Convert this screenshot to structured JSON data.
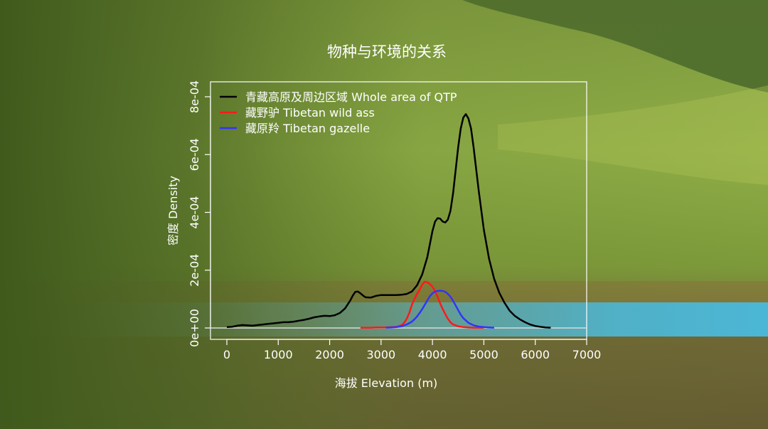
{
  "chart_data": {
    "type": "line",
    "title": "物种与环境的关系",
    "xlabel": "海拔  Elevation (m)",
    "ylabel": "密度  Density",
    "xlim": [
      0,
      7000
    ],
    "ylim": [
      0,
      0.0008
    ],
    "x_ticks": [
      "0",
      "1000",
      "2000",
      "3000",
      "4000",
      "5000",
      "6000",
      "7000"
    ],
    "y_ticks": [
      "0e+00",
      "2e-04",
      "4e-04",
      "6e-04",
      "8e-04"
    ],
    "legend_position": "top-left",
    "grid": false,
    "series": [
      {
        "name": "青藏高原及周边区域 Whole area of QTP",
        "color": "#000000",
        "x": [
          0,
          100,
          200,
          300,
          400,
          500,
          600,
          700,
          800,
          900,
          1000,
          1100,
          1200,
          1300,
          1400,
          1500,
          1600,
          1700,
          1800,
          1900,
          2000,
          2100,
          2200,
          2300,
          2400,
          2450,
          2500,
          2550,
          2600,
          2650,
          2700,
          2800,
          2900,
          3000,
          3100,
          3200,
          3300,
          3400,
          3500,
          3600,
          3700,
          3800,
          3900,
          3950,
          4000,
          4050,
          4100,
          4150,
          4200,
          4250,
          4300,
          4350,
          4400,
          4450,
          4500,
          4550,
          4600,
          4650,
          4700,
          4750,
          4800,
          4850,
          4900,
          5000,
          5100,
          5200,
          5300,
          5400,
          5500,
          5600,
          5700,
          5800,
          5900,
          6000,
          6100,
          6200,
          6300
        ],
        "y": [
          3e-06,
          4e-06,
          8e-06,
          1e-05,
          9e-06,
          8e-06,
          1e-05,
          1.2e-05,
          1.4e-05,
          1.6e-05,
          1.8e-05,
          2e-05,
          2e-05,
          2.2e-05,
          2.5e-05,
          2.8e-05,
          3.2e-05,
          3.7e-05,
          4e-05,
          4.2e-05,
          4.1e-05,
          4.4e-05,
          5.2e-05,
          6.8e-05,
          9.5e-05,
          0.000112,
          0.000125,
          0.000126,
          0.00012,
          0.000112,
          0.000106,
          0.000105,
          0.000111,
          0.000114,
          0.000114,
          0.000114,
          0.000114,
          0.000115,
          0.000118,
          0.000126,
          0.000148,
          0.000185,
          0.000245,
          0.00029,
          0.000335,
          0.000368,
          0.00038,
          0.000378,
          0.000368,
          0.000365,
          0.000375,
          0.000405,
          0.000465,
          0.000545,
          0.000625,
          0.00069,
          0.000728,
          0.00074,
          0.000725,
          0.00069,
          0.000625,
          0.00055,
          0.000475,
          0.00034,
          0.00024,
          0.00017,
          0.000122,
          8.8e-05,
          6e-05,
          4.2e-05,
          3e-05,
          2e-05,
          1.2e-05,
          7e-06,
          4e-06,
          2e-06,
          1e-06
        ]
      },
      {
        "name": "藏野驴 Tibetan wild ass",
        "color": "#ff1a1a",
        "x": [
          2600,
          2700,
          2800,
          2900,
          3000,
          3100,
          3200,
          3300,
          3400,
          3450,
          3500,
          3550,
          3600,
          3650,
          3700,
          3750,
          3800,
          3850,
          3900,
          3950,
          4000,
          4050,
          4100,
          4150,
          4200,
          4250,
          4300,
          4350,
          4400,
          4500,
          4600,
          4700,
          4800,
          4900,
          5000
        ],
        "y": [
          1e-06,
          1e-06,
          1e-06,
          2e-06,
          2e-06,
          2e-06,
          3e-06,
          4e-06,
          1e-05,
          1.8e-05,
          3.2e-05,
          5.2e-05,
          8e-05,
          0.0001,
          0.000118,
          0.000132,
          0.00015,
          0.00016,
          0.000158,
          0.000152,
          0.000143,
          0.000128,
          0.000108,
          8.5e-05,
          6.5e-05,
          4.8e-05,
          3.2e-05,
          2e-05,
          1.2e-05,
          6e-06,
          3e-06,
          2e-06,
          1e-06,
          1e-06,
          1e-06
        ]
      },
      {
        "name": "藏原羚 Tibetan gazelle",
        "color": "#3333ff",
        "x": [
          3100,
          3200,
          3300,
          3400,
          3500,
          3600,
          3650,
          3700,
          3750,
          3800,
          3850,
          3900,
          3950,
          4000,
          4050,
          4100,
          4150,
          4200,
          4250,
          4300,
          4350,
          4400,
          4450,
          4500,
          4550,
          4600,
          4700,
          4800,
          4900,
          5000,
          5100,
          5200
        ],
        "y": [
          1e-06,
          2e-06,
          3e-06,
          6e-06,
          1.2e-05,
          2.2e-05,
          3e-05,
          4e-05,
          5.2e-05,
          6.5e-05,
          8e-05,
          9.5e-05,
          0.00011,
          0.00012,
          0.000126,
          0.000128,
          0.000129,
          0.000128,
          0.000125,
          0.000118,
          0.000108,
          9.4e-05,
          7.8e-05,
          6.2e-05,
          4.6e-05,
          3.4e-05,
          1.8e-05,
          9e-06,
          5e-06,
          3e-06,
          2e-06,
          1e-06
        ]
      }
    ]
  }
}
